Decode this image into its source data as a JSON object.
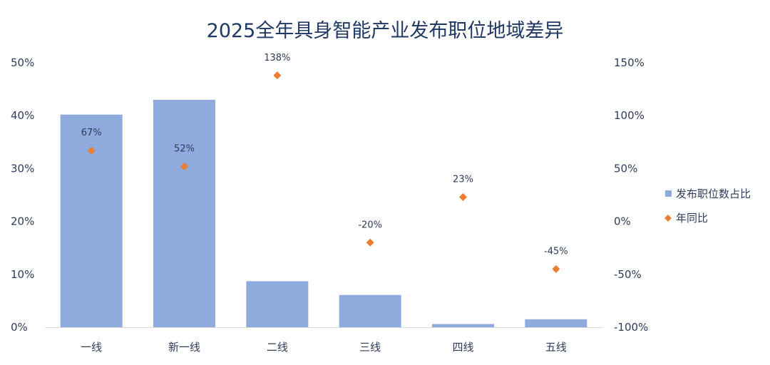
{
  "chart_data": {
    "type": "bar+scatter",
    "title": "2025全年具身智能产业发布职位地域差异",
    "categories": [
      "一线",
      "新一线",
      "二线",
      "三线",
      "四线",
      "五线"
    ],
    "series": [
      {
        "name": "发布职位数占比",
        "kind": "bar",
        "axis": "left",
        "values": [
          40.2,
          43.0,
          8.7,
          6.1,
          0.6,
          1.5
        ],
        "color": "#8faadc"
      },
      {
        "name": "年同比",
        "kind": "scatter",
        "axis": "right",
        "values": [
          67,
          52,
          138,
          -20,
          23,
          -45
        ],
        "labels": [
          "67%",
          "52%",
          "138%",
          "-20%",
          "23%",
          "-45%"
        ],
        "color": "#ed7d31"
      }
    ],
    "y_left": {
      "range": [
        0,
        50
      ],
      "ticks": [
        0,
        10,
        20,
        30,
        40,
        50
      ],
      "tick_labels": [
        "0%",
        "10%",
        "20%",
        "30%",
        "40%",
        "50%"
      ]
    },
    "y_right": {
      "range": [
        -100,
        150
      ],
      "ticks": [
        -100,
        -50,
        0,
        50,
        100,
        150
      ],
      "tick_labels": [
        "-100%",
        "-50%",
        "0%",
        "50%",
        "100%",
        "150%"
      ]
    },
    "legend_position": "right",
    "grid": false
  }
}
